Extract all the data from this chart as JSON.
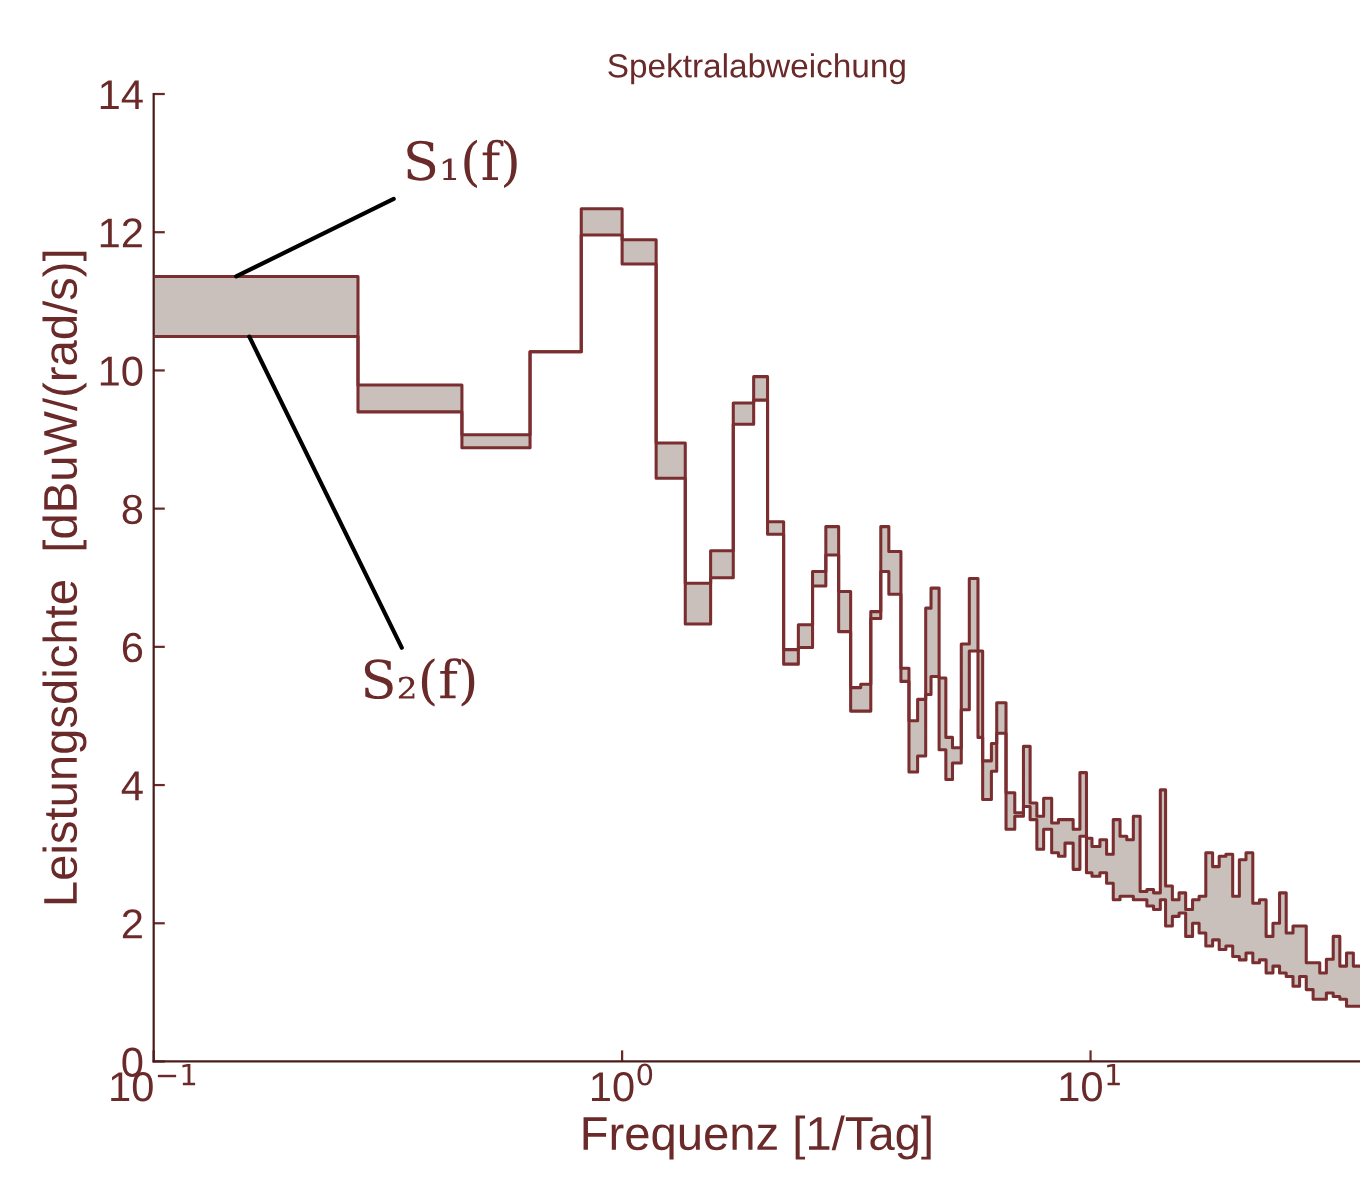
{
  "chart_data": {
    "type": "step",
    "title": "Spektralabweichung",
    "xlabel": "Frequenz [1/Tag]",
    "ylabel": "Leistungsdichte  [dBuW/(rad/s)]",
    "log": "x",
    "xlim": [
      0.1,
      37.6
    ],
    "ylim": [
      0,
      14
    ],
    "xticks": [
      {
        "value": 0.1,
        "label": "10$^{−1}$"
      },
      {
        "value": 1,
        "label": "10$^{0}$"
      },
      {
        "value": 10,
        "label": "10$^{1}$"
      }
    ],
    "yticks": [
      0,
      2,
      4,
      6,
      8,
      10,
      12,
      14
    ],
    "grid": false,
    "legend": false,
    "annotations": [
      {
        "text": "S₁(f)",
        "x": 0.15,
        "y": 11.36
      },
      {
        "text": "S₂(f)",
        "x": 0.16,
        "y": 10.49
      }
    ],
    "series": [
      {
        "color": "#7a2e30",
        "x": [
          0.1,
          0.273,
          0.455,
          0.636,
          0.818,
          1.0,
          1.182,
          1.364,
          1.545,
          1.727,
          1.909,
          2.044,
          2.212,
          2.378,
          2.55,
          2.722,
          2.899,
          3.075,
          3.231,
          3.395,
          3.566,
          3.71,
          3.937,
          4.096,
          4.274,
          4.447,
          4.565,
          4.75,
          4.91,
          5.073,
          5.297,
          5.51,
          5.75,
          5.884,
          6.142,
          6.305,
          6.6,
          6.89,
          7.19,
          7.43,
          7.68,
          7.94,
          8.26,
          8.54,
          8.82,
          9.18,
          9.49,
          9.8,
          10.07,
          10.47,
          10.82,
          11.18,
          11.56,
          11.95,
          12.34,
          12.76,
          13.19,
          13.63,
          14.09,
          14.46,
          14.95,
          15.45,
          15.96,
          16.51,
          17.05,
          17.62,
          18.22,
          18.82,
          19.45,
          20.11,
          20.78,
          21.47,
          22.2,
          22.94,
          23.7,
          24.51,
          25.32,
          26.16,
          27.05,
          27.94,
          28.87,
          29.86,
          30.85,
          31.87,
          32.96,
          34.05,
          35.19,
          36.39
        ],
        "values": [
          11.36,
          9.79,
          9.07,
          10.27,
          12.34,
          11.89,
          8.95,
          6.92,
          7.39,
          9.53,
          9.91,
          7.81,
          5.96,
          6.32,
          7.09,
          7.74,
          6.8,
          5.41,
          5.46,
          6.51,
          7.74,
          7.38,
          5.69,
          4.93,
          5.24,
          6.56,
          6.85,
          5.55,
          4.69,
          4.54,
          6.04,
          6.99,
          5.94,
          4.35,
          4.6,
          5.19,
          3.89,
          3.6,
          4.56,
          3.74,
          3.55,
          3.81,
          3.45,
          3.5,
          3.5,
          3.36,
          4.18,
          3.23,
          3.11,
          3.21,
          3.0,
          3.5,
          3.26,
          3.21,
          3.55,
          2.46,
          2.49,
          2.44,
          3.93,
          2.54,
          2.34,
          2.44,
          2.2,
          2.34,
          2.39,
          3.02,
          2.82,
          2.97,
          3.0,
          2.39,
          2.92,
          3.02,
          2.29,
          2.34,
          1.81,
          2.0,
          2.44,
          1.86,
          1.96,
          1.96,
          1.43,
          1.43,
          1.28,
          1.48,
          1.81,
          1.38,
          1.57,
          1.38
        ],
        "upper": [
          11.36,
          9.79,
          9.07,
          10.27,
          12.34,
          11.89,
          8.95,
          6.92,
          7.39,
          9.53,
          9.91,
          7.81,
          5.96,
          6.32,
          7.09,
          7.74,
          6.8,
          5.41,
          5.46,
          6.51,
          7.74,
          7.38,
          5.69,
          4.93,
          5.24,
          6.56,
          6.85,
          5.55,
          4.69,
          4.54,
          6.04,
          6.99,
          5.94,
          4.35,
          4.6,
          5.19,
          3.89,
          3.6,
          4.56,
          3.74,
          3.55,
          3.81,
          3.45,
          3.5,
          3.5,
          3.36,
          4.18,
          3.23,
          3.11,
          3.21,
          3.0,
          3.5,
          3.26,
          3.21,
          3.55,
          2.46,
          2.49,
          2.44,
          3.93,
          2.54,
          2.34,
          2.44,
          2.2,
          2.34,
          2.39,
          3.02,
          2.82,
          2.97,
          3.0,
          2.39,
          2.92,
          3.02,
          2.29,
          2.34,
          1.81,
          2.0,
          2.44,
          1.86,
          1.96,
          1.96,
          1.43,
          1.43,
          1.28,
          1.48,
          1.81,
          1.38,
          1.57,
          1.38
        ],
        "lower": [
          10.49,
          9.4,
          8.88,
          10.27,
          11.96,
          11.54,
          8.44,
          6.33,
          7.0,
          9.22,
          9.57,
          7.63,
          5.75,
          5.99,
          6.88,
          7.33,
          6.22,
          5.07,
          5.07,
          6.41,
          7.09,
          6.76,
          5.5,
          4.19,
          4.42,
          5.31,
          5.57,
          4.51,
          4.08,
          4.32,
          5.09,
          5.94,
          4.69,
          3.79,
          4.2,
          4.75,
          3.36,
          3.55,
          3.69,
          3.5,
          3.07,
          3.36,
          3.02,
          2.97,
          3.16,
          2.78,
          3.26,
          2.73,
          2.68,
          2.73,
          2.58,
          2.34,
          2.39,
          2.39,
          2.34,
          2.34,
          2.25,
          2.2,
          2.34,
          1.96,
          2.1,
          2.15,
          1.81,
          2.0,
          1.86,
          1.67,
          1.76,
          1.62,
          1.67,
          1.52,
          1.47,
          1.57,
          1.43,
          1.47,
          1.28,
          1.38,
          1.28,
          1.23,
          1.09,
          1.23,
          1.04,
          0.9,
          0.9,
          0.99,
          0.94,
          0.9,
          0.8,
          0.8
        ]
      },
      {
        "color": "#7a2e30",
        "x": [
          0.1,
          0.273,
          0.455,
          0.636,
          0.818,
          1.0,
          1.182,
          1.364,
          1.545,
          1.727,
          1.909,
          2.044,
          2.212,
          2.378,
          2.55,
          2.722,
          2.899,
          3.075,
          3.231,
          3.395,
          3.566,
          3.71,
          3.937,
          4.096,
          4.274,
          4.447,
          4.565,
          4.75,
          4.91,
          5.073,
          5.297,
          5.51,
          5.75,
          5.884,
          6.142,
          6.305,
          6.6,
          6.89,
          7.19,
          7.43,
          7.68,
          7.94,
          8.26,
          8.54,
          8.82,
          9.18,
          9.49,
          9.8,
          10.07,
          10.47,
          10.82,
          11.18,
          11.56,
          11.95,
          12.34,
          12.76,
          13.19,
          13.63,
          14.09,
          14.46,
          14.95,
          15.45,
          15.96,
          16.51,
          17.05,
          17.62,
          18.22,
          18.82,
          19.45,
          20.11,
          20.78,
          21.47,
          22.2,
          22.94,
          23.7,
          24.51,
          25.32,
          26.16,
          27.05,
          27.94,
          28.87,
          29.86,
          30.85,
          31.87,
          32.96,
          34.05,
          35.19,
          36.39
        ],
        "values": [
          10.49,
          9.4,
          8.88,
          10.27,
          11.96,
          11.54,
          8.44,
          6.33,
          7.0,
          9.22,
          9.57,
          7.63,
          5.75,
          5.99,
          6.88,
          7.33,
          6.22,
          5.07,
          5.07,
          6.41,
          7.09,
          6.76,
          5.5,
          4.19,
          4.42,
          5.31,
          5.57,
          4.51,
          4.08,
          4.32,
          5.09,
          5.94,
          4.69,
          3.79,
          4.2,
          4.75,
          3.36,
          3.55,
          3.69,
          3.5,
          3.07,
          3.36,
          3.02,
          2.97,
          3.16,
          2.78,
          3.26,
          2.73,
          2.68,
          2.73,
          2.58,
          2.34,
          2.39,
          2.39,
          2.34,
          2.34,
          2.25,
          2.2,
          2.34,
          1.96,
          2.1,
          2.15,
          1.81,
          2.0,
          1.86,
          1.67,
          1.76,
          1.62,
          1.67,
          1.52,
          1.47,
          1.57,
          1.43,
          1.47,
          1.28,
          1.38,
          1.28,
          1.23,
          1.09,
          1.23,
          1.04,
          0.9,
          0.9,
          0.99,
          0.94,
          0.9,
          0.8,
          0.8
        ]
      }
    ]
  }
}
